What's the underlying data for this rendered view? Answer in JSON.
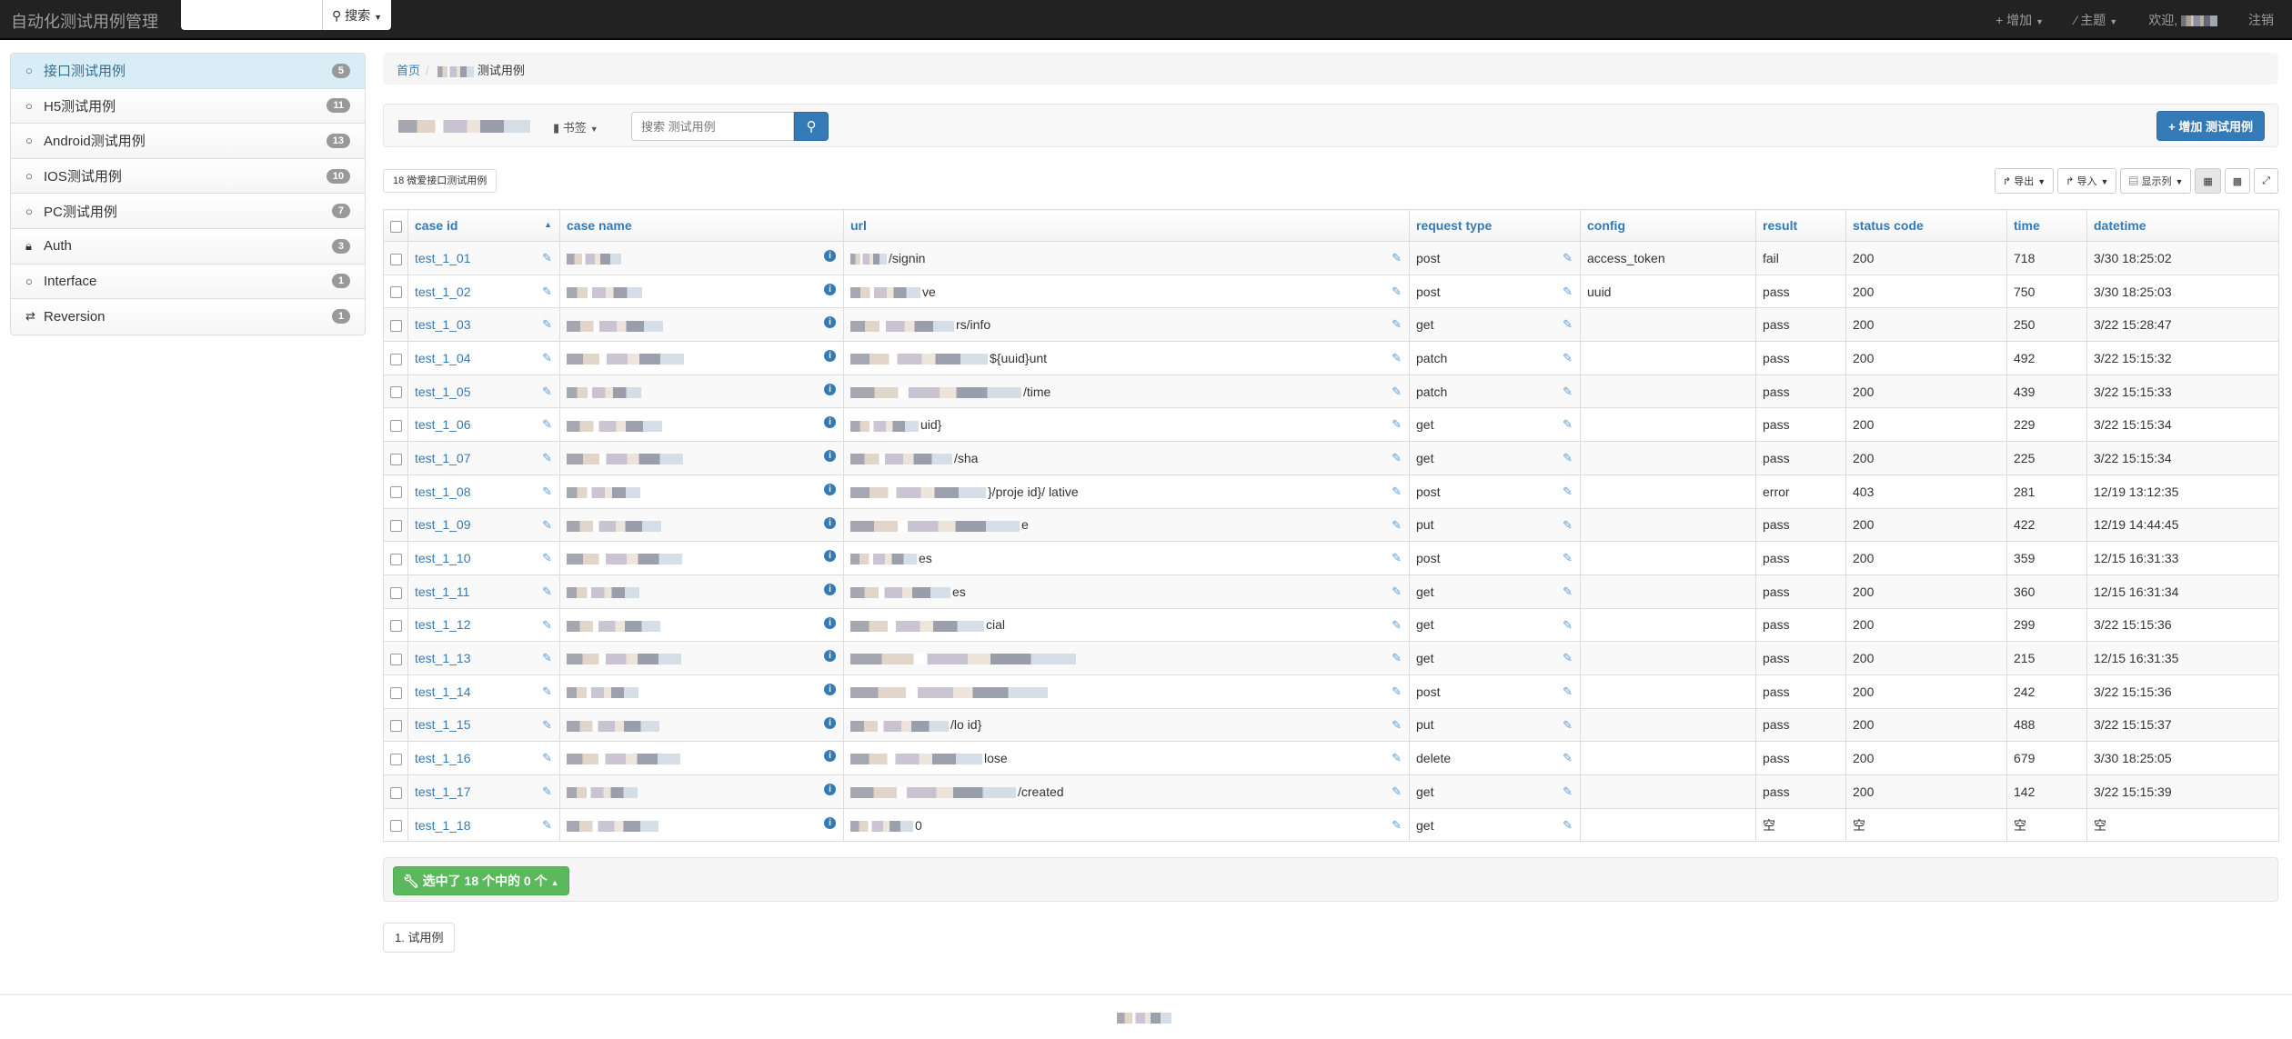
{
  "nav": {
    "brand": "自动化测试用例管理",
    "search_placeholder": "",
    "search_label": "搜索",
    "add_label": "增加",
    "theme_label": "主题",
    "welcome_label": "欢迎,",
    "logout_label": "注销"
  },
  "sidebar": {
    "items": [
      {
        "label": "接口测试用例",
        "count": "5",
        "icon": "circle-icon",
        "active": true
      },
      {
        "label": "H5测试用例",
        "count": "11",
        "icon": "circle-icon"
      },
      {
        "label": "Android测试用例",
        "count": "13",
        "icon": "circle-icon"
      },
      {
        "label": "IOS测试用例",
        "count": "10",
        "icon": "circle-icon"
      },
      {
        "label": "PC测试用例",
        "count": "7",
        "icon": "circle-icon"
      },
      {
        "label": "Auth",
        "count": "3",
        "icon": "lock-icon"
      },
      {
        "label": "Interface",
        "count": "1",
        "icon": "circle-icon"
      },
      {
        "label": "Reversion",
        "count": "1",
        "icon": "swap-icon"
      }
    ]
  },
  "breadcrumb": {
    "home": "首页",
    "current": "测试用例"
  },
  "toolbar": {
    "bookmark_label": "书签",
    "search_placeholder": "搜索 测试用例",
    "add_button": "增加 测试用例"
  },
  "favorites_label": "18 微爱接口测试用例",
  "table_tools": {
    "export": "导出",
    "import": "导入",
    "columns": "显示列"
  },
  "table": {
    "columns": [
      "case id",
      "case name",
      "url",
      "request type",
      "config",
      "result",
      "status code",
      "time",
      "datetime"
    ],
    "rows": [
      {
        "id": "test_1_01",
        "url": "/signin",
        "type": "post",
        "config": "access_token",
        "result": "fail",
        "status": "200",
        "time": "718",
        "datetime": "3/30 18:25:02"
      },
      {
        "id": "test_1_02",
        "url": "ve",
        "type": "post",
        "config": "uuid",
        "result": "pass",
        "status": "200",
        "time": "750",
        "datetime": "3/30 18:25:03"
      },
      {
        "id": "test_1_03",
        "url": "rs/info",
        "type": "get",
        "config": "",
        "result": "pass",
        "status": "200",
        "time": "250",
        "datetime": "3/22 15:28:47"
      },
      {
        "id": "test_1_04",
        "url": "${uuid}unt",
        "type": "patch",
        "config": "",
        "result": "pass",
        "status": "200",
        "time": "492",
        "datetime": "3/22 15:15:32"
      },
      {
        "id": "test_1_05",
        "url": "/time",
        "type": "patch",
        "config": "",
        "result": "pass",
        "status": "200",
        "time": "439",
        "datetime": "3/22 15:15:33"
      },
      {
        "id": "test_1_06",
        "url": "uid}",
        "type": "get",
        "config": "",
        "result": "pass",
        "status": "200",
        "time": "229",
        "datetime": "3/22 15:15:34"
      },
      {
        "id": "test_1_07",
        "url": "/sha",
        "type": "get",
        "config": "",
        "result": "pass",
        "status": "200",
        "time": "225",
        "datetime": "3/22 15:15:34"
      },
      {
        "id": "test_1_08",
        "url": "}/proje id}/ lative",
        "type": "post",
        "config": "",
        "result": "error",
        "status": "403",
        "time": "281",
        "datetime": "12/19 13:12:35"
      },
      {
        "id": "test_1_09",
        "url": "e",
        "type": "put",
        "config": "",
        "result": "pass",
        "status": "200",
        "time": "422",
        "datetime": "12/19 14:44:45"
      },
      {
        "id": "test_1_10",
        "url": "es",
        "type": "post",
        "config": "",
        "result": "pass",
        "status": "200",
        "time": "359",
        "datetime": "12/15 16:31:33"
      },
      {
        "id": "test_1_11",
        "url": "es",
        "type": "get",
        "config": "",
        "result": "pass",
        "status": "200",
        "time": "360",
        "datetime": "12/15 16:31:34"
      },
      {
        "id": "test_1_12",
        "url": "cial",
        "type": "get",
        "config": "",
        "result": "pass",
        "status": "200",
        "time": "299",
        "datetime": "3/22 15:15:36"
      },
      {
        "id": "test_1_13",
        "url": "",
        "type": "get",
        "config": "",
        "result": "pass",
        "status": "200",
        "time": "215",
        "datetime": "12/15 16:31:35"
      },
      {
        "id": "test_1_14",
        "url": "",
        "type": "post",
        "config": "",
        "result": "pass",
        "status": "200",
        "time": "242",
        "datetime": "3/22 15:15:36"
      },
      {
        "id": "test_1_15",
        "url": "/lo id}",
        "type": "put",
        "config": "",
        "result": "pass",
        "status": "200",
        "time": "488",
        "datetime": "3/22 15:15:37"
      },
      {
        "id": "test_1_16",
        "url": "lose",
        "type": "delete",
        "config": "",
        "result": "pass",
        "status": "200",
        "time": "679",
        "datetime": "3/30 18:25:05"
      },
      {
        "id": "test_1_17",
        "url": "/created",
        "type": "get",
        "config": "",
        "result": "pass",
        "status": "200",
        "time": "142",
        "datetime": "3/22 15:15:39"
      },
      {
        "id": "test_1_18",
        "url": "0",
        "type": "get",
        "config": "",
        "result": "空",
        "status": "空",
        "time": "空",
        "datetime": "空"
      }
    ]
  },
  "selection_label": "选中了 18 个中的 0 个",
  "pagination_label": "1. 试用例",
  "colors": {
    "primary": "#337ab7",
    "success": "#5cb85c",
    "navbar": "#222222",
    "active": "#d9edf7"
  }
}
